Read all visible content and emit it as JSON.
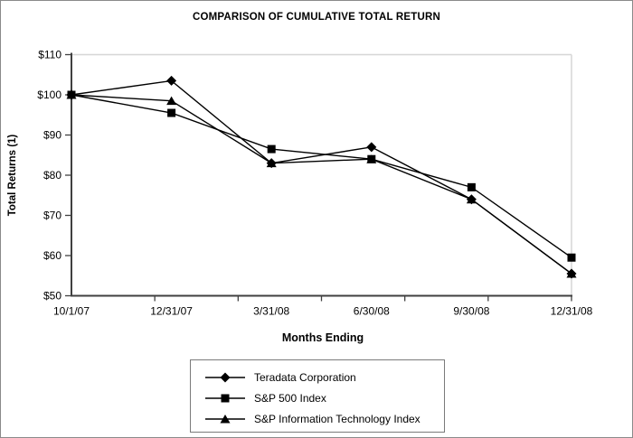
{
  "chart_data": {
    "type": "line",
    "title": "COMPARISON OF CUMULATIVE TOTAL RETURN",
    "xlabel": "Months Ending",
    "ylabel": "Total Returns (1)",
    "categories": [
      "10/1/07",
      "12/31/07",
      "3/31/08",
      "6/30/08",
      "9/30/08",
      "12/31/08"
    ],
    "series": [
      {
        "name": "Teradata Corporation",
        "marker": "diamond",
        "values": [
          100,
          103.5,
          83,
          87,
          74,
          55.5
        ]
      },
      {
        "name": "S&P 500 Index",
        "marker": "square",
        "values": [
          100,
          95.5,
          86.5,
          84,
          77,
          59.5
        ]
      },
      {
        "name": "S&P Information Technology Index",
        "marker": "triangle",
        "values": [
          100,
          98.5,
          83,
          84,
          74,
          55.5
        ]
      }
    ],
    "ylim": [
      50,
      110
    ],
    "y_tick_step": 10,
    "y_tick_prefix": "$",
    "grid": false,
    "legend_position": "bottom",
    "line_color": "#000000",
    "marker_color": "#000000",
    "axis_color": "#404040",
    "plot_border_color": "#d6d6d6"
  }
}
